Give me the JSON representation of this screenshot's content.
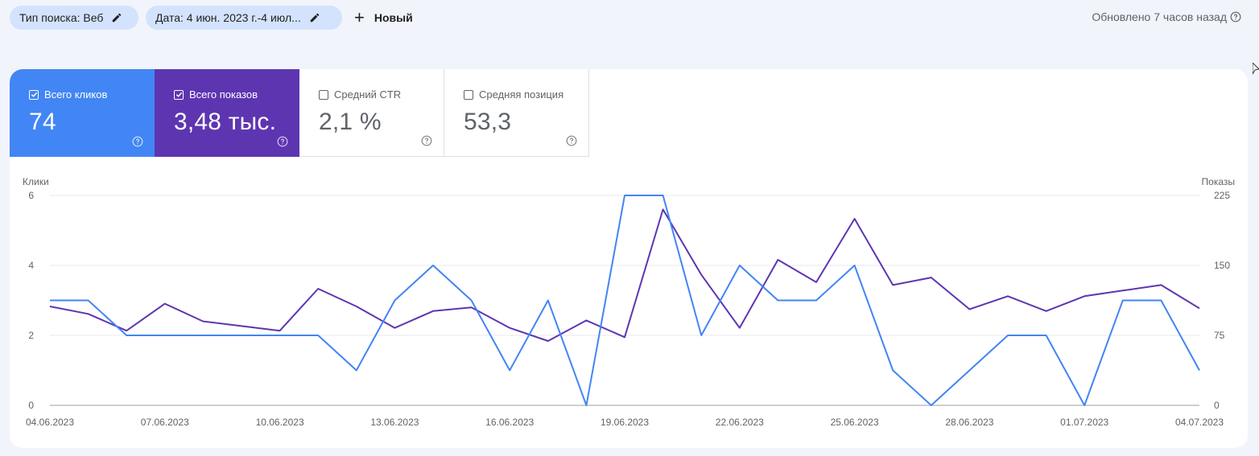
{
  "filters": {
    "search_type": "Тип поиска: Веб",
    "date_range": "Дата: 4 июн. 2023 г.-4 июл...",
    "new_label": "Новый"
  },
  "updated_text": "Обновлено 7 часов назад",
  "metrics": [
    {
      "label": "Всего кликов",
      "value": "74",
      "checked": true,
      "color": "#4285f4"
    },
    {
      "label": "Всего показов",
      "value": "3,48 тыс.",
      "checked": true,
      "color": "#5e35b1"
    },
    {
      "label": "Средний CTR",
      "value": "2,1 %",
      "checked": false
    },
    {
      "label": "Средняя позиция",
      "value": "53,3",
      "checked": false
    }
  ],
  "chart_data": {
    "type": "line",
    "ylabel_left": "Клики",
    "ylabel_right": "Показы",
    "y_left_ticks": [
      "0",
      "2",
      "4",
      "6"
    ],
    "y_right_ticks": [
      "0",
      "75",
      "150",
      "225"
    ],
    "ylim_left": [
      0,
      6
    ],
    "ylim_right": [
      0,
      225
    ],
    "x_ticks": [
      "04.06.2023",
      "07.06.2023",
      "10.06.2023",
      "13.06.2023",
      "16.06.2023",
      "19.06.2023",
      "22.06.2023",
      "25.06.2023",
      "28.06.2023",
      "01.07.2023",
      "04.07.2023"
    ],
    "grid": true,
    "series": [
      {
        "name": "Клики",
        "axis": "left",
        "color": "#4285f4",
        "values": [
          3,
          3,
          2,
          2,
          2,
          2,
          2,
          2,
          1,
          3,
          4,
          3,
          1,
          3,
          0,
          6,
          6,
          2,
          4,
          3,
          3,
          4,
          1,
          0,
          1,
          2,
          2,
          0,
          3,
          3,
          1
        ]
      },
      {
        "name": "Показы",
        "axis": "right",
        "color": "#5e35b1",
        "values": [
          106,
          98,
          80,
          109,
          90,
          85,
          80,
          125,
          106,
          83,
          101,
          105,
          83,
          69,
          91,
          73,
          210,
          140,
          83,
          156,
          132,
          200,
          129,
          137,
          103,
          117,
          101,
          117,
          123,
          129,
          104
        ]
      }
    ]
  }
}
